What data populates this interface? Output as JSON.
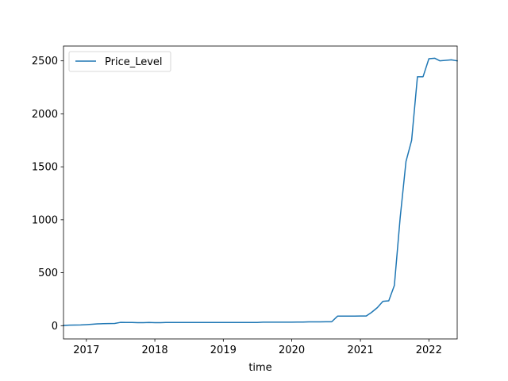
{
  "chart_data": {
    "type": "line",
    "title": "",
    "xlabel": "time",
    "ylabel": "",
    "x_type": "date",
    "xlim": [
      "2016-09-01",
      "2022-06-01"
    ],
    "ylim": [
      -125,
      2640
    ],
    "grid": false,
    "legend_position": "top-left",
    "x_ticks": [
      {
        "value": "2017-01-01",
        "label": "2017"
      },
      {
        "value": "2018-01-01",
        "label": "2018"
      },
      {
        "value": "2019-01-01",
        "label": "2019"
      },
      {
        "value": "2020-01-01",
        "label": "2020"
      },
      {
        "value": "2021-01-01",
        "label": "2021"
      },
      {
        "value": "2022-01-01",
        "label": "2022"
      }
    ],
    "y_ticks": [
      {
        "value": 0,
        "label": "0"
      },
      {
        "value": 500,
        "label": "500"
      },
      {
        "value": 1000,
        "label": "1000"
      },
      {
        "value": 1500,
        "label": "1500"
      },
      {
        "value": 2000,
        "label": "2000"
      },
      {
        "value": 2500,
        "label": "2500"
      }
    ],
    "series": [
      {
        "name": "Price_Level",
        "color": "#1f77b4",
        "x": [
          "2016-09-01",
          "2016-10-01",
          "2016-11-01",
          "2016-12-01",
          "2017-01-01",
          "2017-02-01",
          "2017-03-01",
          "2017-04-01",
          "2017-05-01",
          "2017-06-01",
          "2017-07-01",
          "2017-08-01",
          "2017-09-01",
          "2017-10-01",
          "2017-11-01",
          "2017-12-01",
          "2018-01-01",
          "2018-02-01",
          "2018-03-01",
          "2018-04-01",
          "2018-05-01",
          "2018-06-01",
          "2018-07-01",
          "2018-08-01",
          "2018-09-01",
          "2018-10-01",
          "2018-11-01",
          "2018-12-01",
          "2019-01-01",
          "2019-02-01",
          "2019-03-01",
          "2019-04-01",
          "2019-05-01",
          "2019-06-01",
          "2019-07-01",
          "2019-08-01",
          "2019-09-01",
          "2019-10-01",
          "2019-11-01",
          "2019-12-01",
          "2020-01-01",
          "2020-02-01",
          "2020-03-01",
          "2020-04-01",
          "2020-05-01",
          "2020-06-01",
          "2020-07-01",
          "2020-08-01",
          "2020-09-01",
          "2020-10-01",
          "2020-11-01",
          "2020-12-01",
          "2021-01-01",
          "2021-02-01",
          "2021-03-01",
          "2021-04-01",
          "2021-05-01",
          "2021-06-01",
          "2021-07-01",
          "2021-08-01",
          "2021-09-01",
          "2021-10-01",
          "2021-11-01",
          "2021-12-01",
          "2022-01-01",
          "2022-02-01",
          "2022-03-01",
          "2022-04-01",
          "2022-05-01",
          "2022-06-01"
        ],
        "values": [
          2,
          5,
          6,
          7,
          10,
          14,
          17,
          19,
          20,
          21,
          31,
          30,
          30,
          29,
          29,
          30,
          29,
          29,
          30,
          30,
          30,
          30,
          30,
          30,
          30,
          30,
          30,
          30,
          30,
          30,
          30,
          30,
          30,
          30,
          30,
          33,
          33,
          33,
          33,
          33,
          33,
          34,
          34,
          36,
          36,
          36,
          37,
          37,
          90,
          90,
          90,
          90,
          91,
          91,
          125,
          170,
          230,
          235,
          380,
          1020,
          1550,
          1750,
          2350,
          2350,
          2520,
          2525,
          2500,
          2505,
          2510,
          2500
        ]
      }
    ]
  }
}
